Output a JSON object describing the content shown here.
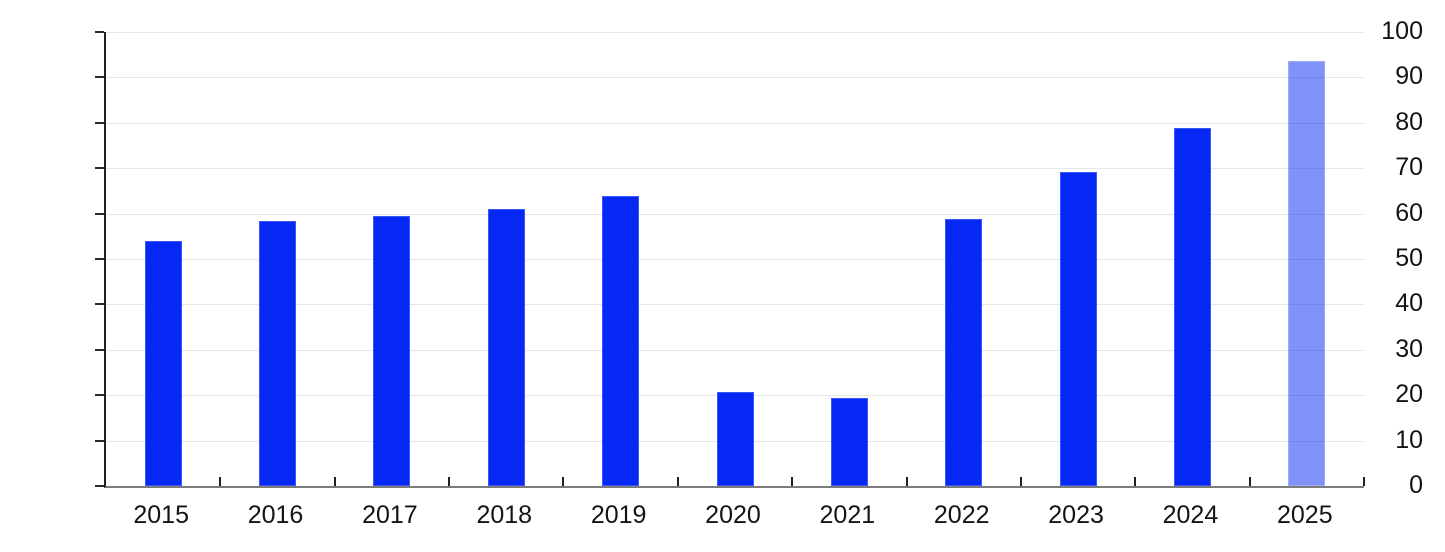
{
  "chart_data": {
    "type": "bar",
    "title": "",
    "xlabel": "",
    "ylabel": "",
    "categories": [
      "2015",
      "2016",
      "2017",
      "2018",
      "2019",
      "2020",
      "2021",
      "2022",
      "2023",
      "2024",
      "2025"
    ],
    "values": [
      53.9,
      58.4,
      59.5,
      61.0,
      63.9,
      20.6,
      19.4,
      58.8,
      69.2,
      78.8,
      93.6
    ],
    "ylim": [
      0,
      100
    ],
    "ytick_step": 10,
    "ytick_labels": [
      "0",
      "10",
      "20",
      "30",
      "40",
      "50",
      "60",
      "70",
      "80",
      "90",
      "100"
    ],
    "grid": "horizontal",
    "legend": "none",
    "colors": {
      "bar": "#0628F5",
      "last_bar_rendered": "#8293FA",
      "grid": "#e6e6e6",
      "y_axis": "#1f1f1f",
      "x_axis": "#7c7c7c",
      "tick": "#1f1f1f",
      "label": "#141414",
      "background": "#ffffff"
    },
    "last_bar_style": {
      "category": "2025",
      "opacity": 0.5,
      "note": "final bar drawn semi-transparent; gridlines visible through it"
    }
  }
}
